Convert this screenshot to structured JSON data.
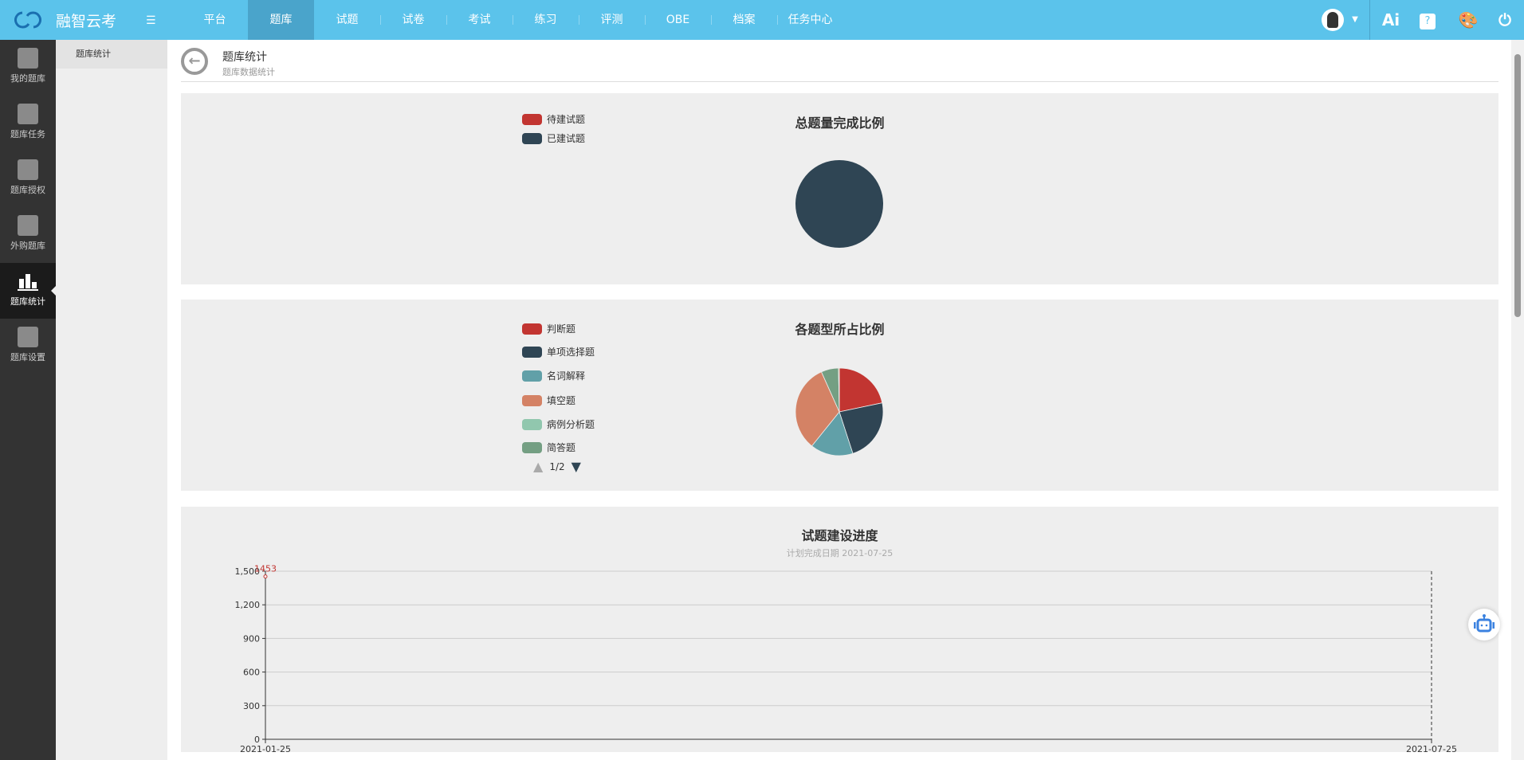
{
  "app": {
    "brand": "融智云考",
    "menu_icon": "hamburger-icon"
  },
  "nav": {
    "items": [
      "平台",
      "题库",
      "试题",
      "试卷",
      "考试",
      "练习",
      "评测",
      "OBE",
      "档案",
      "任务中心"
    ],
    "active": "题库"
  },
  "topright": {
    "ai_label": "Ai",
    "icons": [
      "avatar",
      "caret-down-icon",
      "ai-icon",
      "help-icon",
      "palette-icon",
      "power-icon"
    ]
  },
  "sidebar": {
    "items": [
      {
        "label": "我的题库",
        "icon": "book-list-icon"
      },
      {
        "label": "题库任务",
        "icon": "clipboard-check-icon"
      },
      {
        "label": "题库授权",
        "icon": "document-edit-icon"
      },
      {
        "label": "外购题库",
        "icon": "clipboard-list-icon"
      },
      {
        "label": "题库统计",
        "icon": "bar-chart-icon",
        "active": true
      },
      {
        "label": "题库设置",
        "icon": "clipboard-gear-icon"
      }
    ]
  },
  "submenu": {
    "items": [
      "题库统计"
    ]
  },
  "header": {
    "title": "题库统计",
    "subtitle": "题库数据统计"
  },
  "colors": {
    "topbar": "#5bc3eb",
    "red": "#c23531",
    "dark": "#2f4554",
    "teal": "#61a0a8",
    "orange": "#d48265",
    "mint": "#91c7ae",
    "green": "#749f83"
  },
  "chart_data": [
    {
      "type": "pie",
      "title": "总题量完成比例",
      "legend": [
        "待建试题",
        "已建试题"
      ],
      "legend_placement": "top-left",
      "values": [
        0,
        100
      ],
      "colors": [
        "#c23531",
        "#2f4554"
      ]
    },
    {
      "type": "pie",
      "title": "各题型所占比例",
      "legend": [
        "判断题",
        "单项选择题",
        "名词解释",
        "填空题",
        "病例分析题",
        "简答题"
      ],
      "legend_page": "1/2",
      "legend_placement": "top-left",
      "values": [
        21.7,
        23.3,
        15.8,
        32.5,
        0,
        6.4,
        0.3
      ],
      "colors": [
        "#c23531",
        "#2f4554",
        "#61a0a8",
        "#d48265",
        "#91c7ae",
        "#749f83",
        "#ca8622"
      ]
    },
    {
      "type": "line",
      "title": "试题建设进度",
      "subtitle": "计划完成日期  2021-07-25",
      "x_ticks": [
        "2021-01-25",
        "2021-07-25"
      ],
      "y_ticks": [
        "0",
        "300",
        "600",
        "900",
        "1,200",
        "1,500"
      ],
      "ylim": [
        0,
        1500
      ],
      "grid": true,
      "points": [
        {
          "x": "2021-01-25",
          "y": 1453,
          "label": "1453"
        }
      ],
      "markline_x": "2021-07-25"
    }
  ]
}
